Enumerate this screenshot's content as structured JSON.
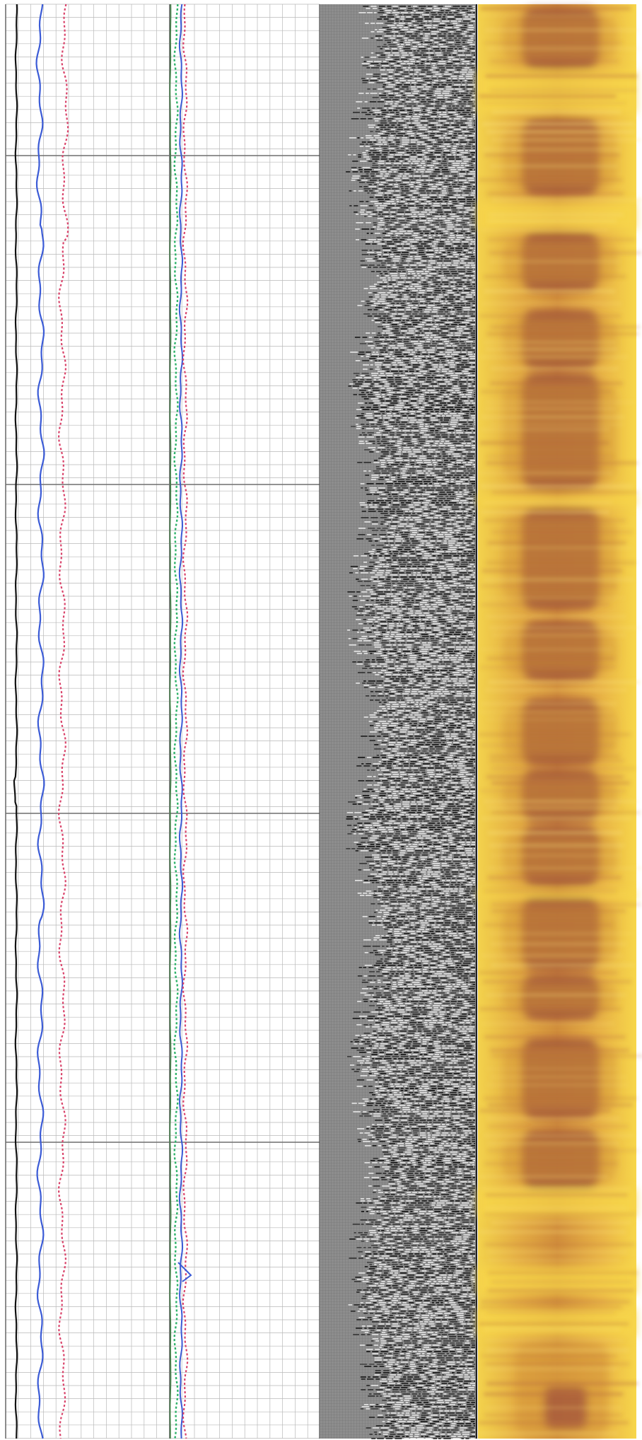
{
  "log": {
    "tracks": [
      {
        "id": "curve-track",
        "kind": "gridded-curves"
      },
      {
        "id": "waveform-track",
        "kind": "variable-density-waveform"
      },
      {
        "id": "image-track",
        "kind": "amplitude-image"
      }
    ],
    "curves": [
      {
        "id": "curve-black",
        "color": "#111111",
        "style": "solid",
        "track": "curve-track"
      },
      {
        "id": "curve-blue",
        "color": "#3b5bd6",
        "style": "solid",
        "track": "curve-track"
      },
      {
        "id": "curve-red-dotted-left",
        "color": "#d9436a",
        "style": "dotted",
        "track": "curve-track"
      },
      {
        "id": "curve-dark-green",
        "color": "#3f7f45",
        "style": "solid",
        "track": "curve-track"
      },
      {
        "id": "curve-green-dotted",
        "color": "#2fb36a",
        "style": "dotted",
        "track": "curve-track"
      },
      {
        "id": "curve-blue-right",
        "color": "#3b5bd6",
        "style": "solid",
        "track": "curve-track"
      },
      {
        "id": "curve-red-dotted-right",
        "color": "#d9436a",
        "style": "dotted",
        "track": "curve-track"
      }
    ],
    "colors": {
      "grid_minor": "#b9b9b9",
      "grid_major": "#6f6f6f",
      "waveform_bg": "#8d8d8d",
      "waveform_dark": "#1a1a1a",
      "image_light": "#f7d64a",
      "image_mid": "#d79a3c",
      "image_dark": "#8e3a3a"
    }
  }
}
